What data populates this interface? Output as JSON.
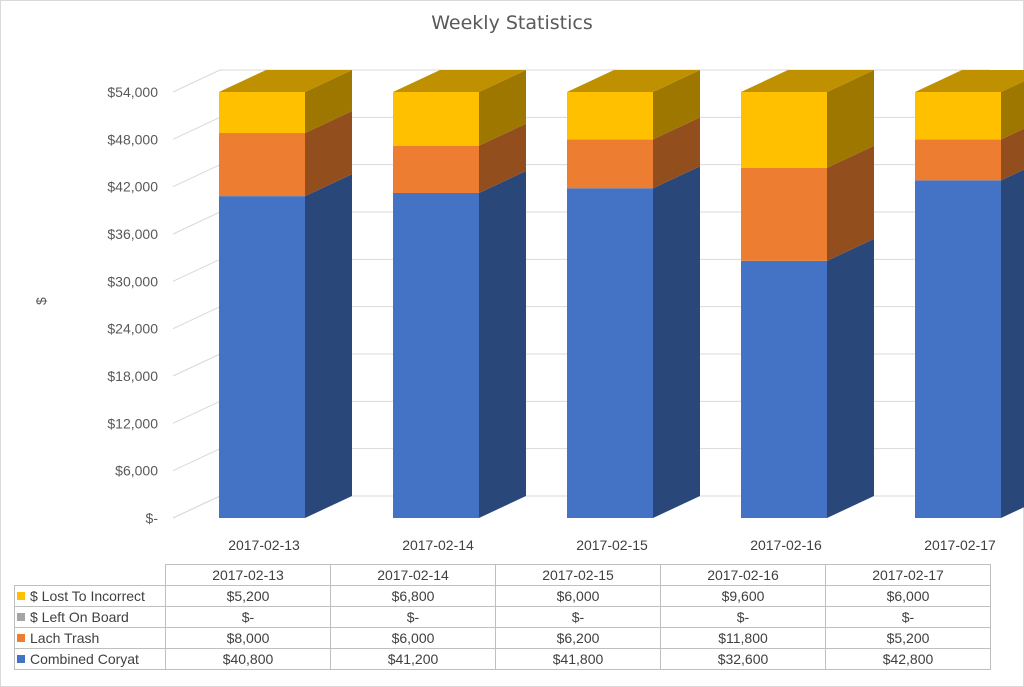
{
  "chart_data": {
    "type": "bar",
    "stacked": true,
    "style": "3d-column",
    "title": "Weekly Statistics",
    "xlabel": "",
    "ylabel": "$",
    "ylim": [
      0,
      54000
    ],
    "yticks": [
      0,
      6000,
      12000,
      18000,
      24000,
      30000,
      36000,
      42000,
      48000,
      54000
    ],
    "ytick_labels": [
      "$-",
      "$6,000",
      "$12,000",
      "$18,000",
      "$24,000",
      "$30,000",
      "$36,000",
      "$42,000",
      "$48,000",
      "$54,000"
    ],
    "grid": true,
    "legend": "data-table",
    "categories": [
      "2017-02-13",
      "2017-02-14",
      "2017-02-15",
      "2017-02-16",
      "2017-02-17"
    ],
    "series": [
      {
        "name": "Combined Coryat",
        "color": "#4472c4",
        "values": [
          40800,
          41200,
          41800,
          32600,
          42800
        ],
        "labels": [
          "$40,800",
          "$41,200",
          "$41,800",
          "$32,600",
          "$42,800"
        ]
      },
      {
        "name": "Lach Trash",
        "color": "#ed7d31",
        "values": [
          8000,
          6000,
          6200,
          11800,
          5200
        ],
        "labels": [
          "$8,000",
          "$6,000",
          "$6,200",
          "$11,800",
          "$5,200"
        ]
      },
      {
        "name": "$ Left On Board",
        "color": "#a5a5a5",
        "values": [
          0,
          0,
          0,
          0,
          0
        ],
        "labels": [
          "$-",
          "$-",
          "$-",
          "$-",
          "$-"
        ]
      },
      {
        "name": "$ Lost To Incorrect",
        "color": "#ffc000",
        "values": [
          5200,
          6800,
          6000,
          9600,
          6000
        ],
        "labels": [
          "$5,200",
          "$6,800",
          "$6,000",
          "$9,600",
          "$6,000"
        ]
      }
    ],
    "table_row_order": [
      3,
      2,
      1,
      0
    ]
  }
}
